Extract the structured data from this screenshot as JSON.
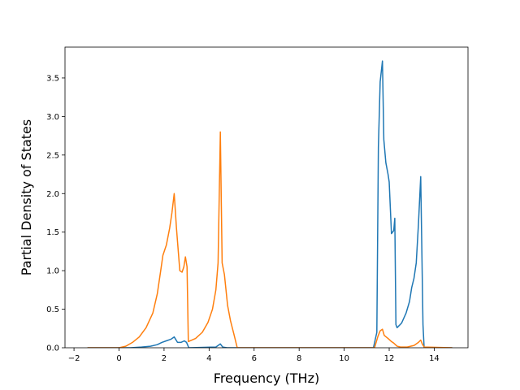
{
  "chart_data": {
    "type": "line",
    "title": "",
    "xlabel": "Frequency (THz)",
    "ylabel": "Partial Density of States",
    "xlim": [
      -2.4,
      15.5
    ],
    "ylim": [
      0,
      3.9
    ],
    "xticks": [
      -2,
      0,
      2,
      4,
      6,
      8,
      10,
      12,
      14
    ],
    "yticks": [
      0.0,
      0.5,
      1.0,
      1.5,
      2.0,
      2.5,
      3.0,
      3.5
    ],
    "xtick_labels": [
      "−2",
      "0",
      "2",
      "4",
      "6",
      "8",
      "10",
      "12",
      "14"
    ],
    "ytick_labels": [
      "0.0",
      "0.5",
      "1.0",
      "1.5",
      "2.0",
      "2.5",
      "3.0",
      "3.5"
    ],
    "grid": false,
    "legend": null,
    "series": [
      {
        "color": "#1f77b4",
        "points": [
          [
            -1.4,
            0
          ],
          [
            0.0,
            0
          ],
          [
            0.5,
            0.0
          ],
          [
            1.0,
            0.01
          ],
          [
            1.4,
            0.02
          ],
          [
            1.7,
            0.04
          ],
          [
            1.9,
            0.07
          ],
          [
            2.1,
            0.09
          ],
          [
            2.3,
            0.11
          ],
          [
            2.45,
            0.14
          ],
          [
            2.6,
            0.07
          ],
          [
            2.75,
            0.07
          ],
          [
            2.9,
            0.09
          ],
          [
            3.0,
            0.07
          ],
          [
            3.1,
            0.0
          ],
          [
            4.3,
            0.01
          ],
          [
            4.5,
            0.05
          ],
          [
            4.6,
            0.01
          ],
          [
            4.8,
            0.0
          ],
          [
            11.3,
            0.0
          ],
          [
            11.45,
            0.2
          ],
          [
            11.52,
            2.6
          ],
          [
            11.6,
            3.45
          ],
          [
            11.7,
            3.72
          ],
          [
            11.76,
            2.7
          ],
          [
            11.85,
            2.4
          ],
          [
            11.95,
            2.25
          ],
          [
            12.0,
            2.15
          ],
          [
            12.1,
            1.48
          ],
          [
            12.2,
            1.52
          ],
          [
            12.25,
            1.68
          ],
          [
            12.3,
            0.3
          ],
          [
            12.35,
            0.26
          ],
          [
            12.55,
            0.32
          ],
          [
            12.75,
            0.45
          ],
          [
            12.9,
            0.6
          ],
          [
            13.0,
            0.78
          ],
          [
            13.1,
            0.9
          ],
          [
            13.2,
            1.1
          ],
          [
            13.3,
            1.6
          ],
          [
            13.4,
            2.22
          ],
          [
            13.5,
            0.3
          ],
          [
            13.55,
            0.0
          ],
          [
            14.8,
            0
          ]
        ]
      },
      {
        "color": "#ff7f0e",
        "points": [
          [
            -1.4,
            0
          ],
          [
            0.0,
            0.0
          ],
          [
            0.3,
            0.02
          ],
          [
            0.6,
            0.07
          ],
          [
            0.9,
            0.14
          ],
          [
            1.2,
            0.26
          ],
          [
            1.5,
            0.45
          ],
          [
            1.7,
            0.7
          ],
          [
            1.85,
            1.0
          ],
          [
            1.95,
            1.2
          ],
          [
            2.1,
            1.33
          ],
          [
            2.25,
            1.55
          ],
          [
            2.35,
            1.75
          ],
          [
            2.45,
            2.0
          ],
          [
            2.55,
            1.55
          ],
          [
            2.7,
            1.0
          ],
          [
            2.8,
            0.98
          ],
          [
            2.88,
            1.05
          ],
          [
            2.95,
            1.18
          ],
          [
            3.02,
            1.05
          ],
          [
            3.08,
            0.08
          ],
          [
            3.4,
            0.12
          ],
          [
            3.7,
            0.2
          ],
          [
            3.95,
            0.33
          ],
          [
            4.15,
            0.5
          ],
          [
            4.3,
            0.75
          ],
          [
            4.4,
            1.1
          ],
          [
            4.5,
            2.8
          ],
          [
            4.58,
            1.1
          ],
          [
            4.68,
            0.95
          ],
          [
            4.82,
            0.55
          ],
          [
            4.95,
            0.35
          ],
          [
            5.1,
            0.18
          ],
          [
            5.25,
            0.0
          ],
          [
            11.35,
            0.0
          ],
          [
            11.5,
            0.15
          ],
          [
            11.6,
            0.22
          ],
          [
            11.7,
            0.24
          ],
          [
            11.78,
            0.16
          ],
          [
            11.95,
            0.12
          ],
          [
            12.1,
            0.08
          ],
          [
            12.2,
            0.06
          ],
          [
            12.35,
            0.02
          ],
          [
            12.5,
            0.01
          ],
          [
            12.8,
            0.01
          ],
          [
            13.1,
            0.03
          ],
          [
            13.3,
            0.07
          ],
          [
            13.4,
            0.1
          ],
          [
            13.47,
            0.05
          ],
          [
            13.55,
            0.01
          ],
          [
            14.8,
            0
          ]
        ]
      }
    ]
  }
}
